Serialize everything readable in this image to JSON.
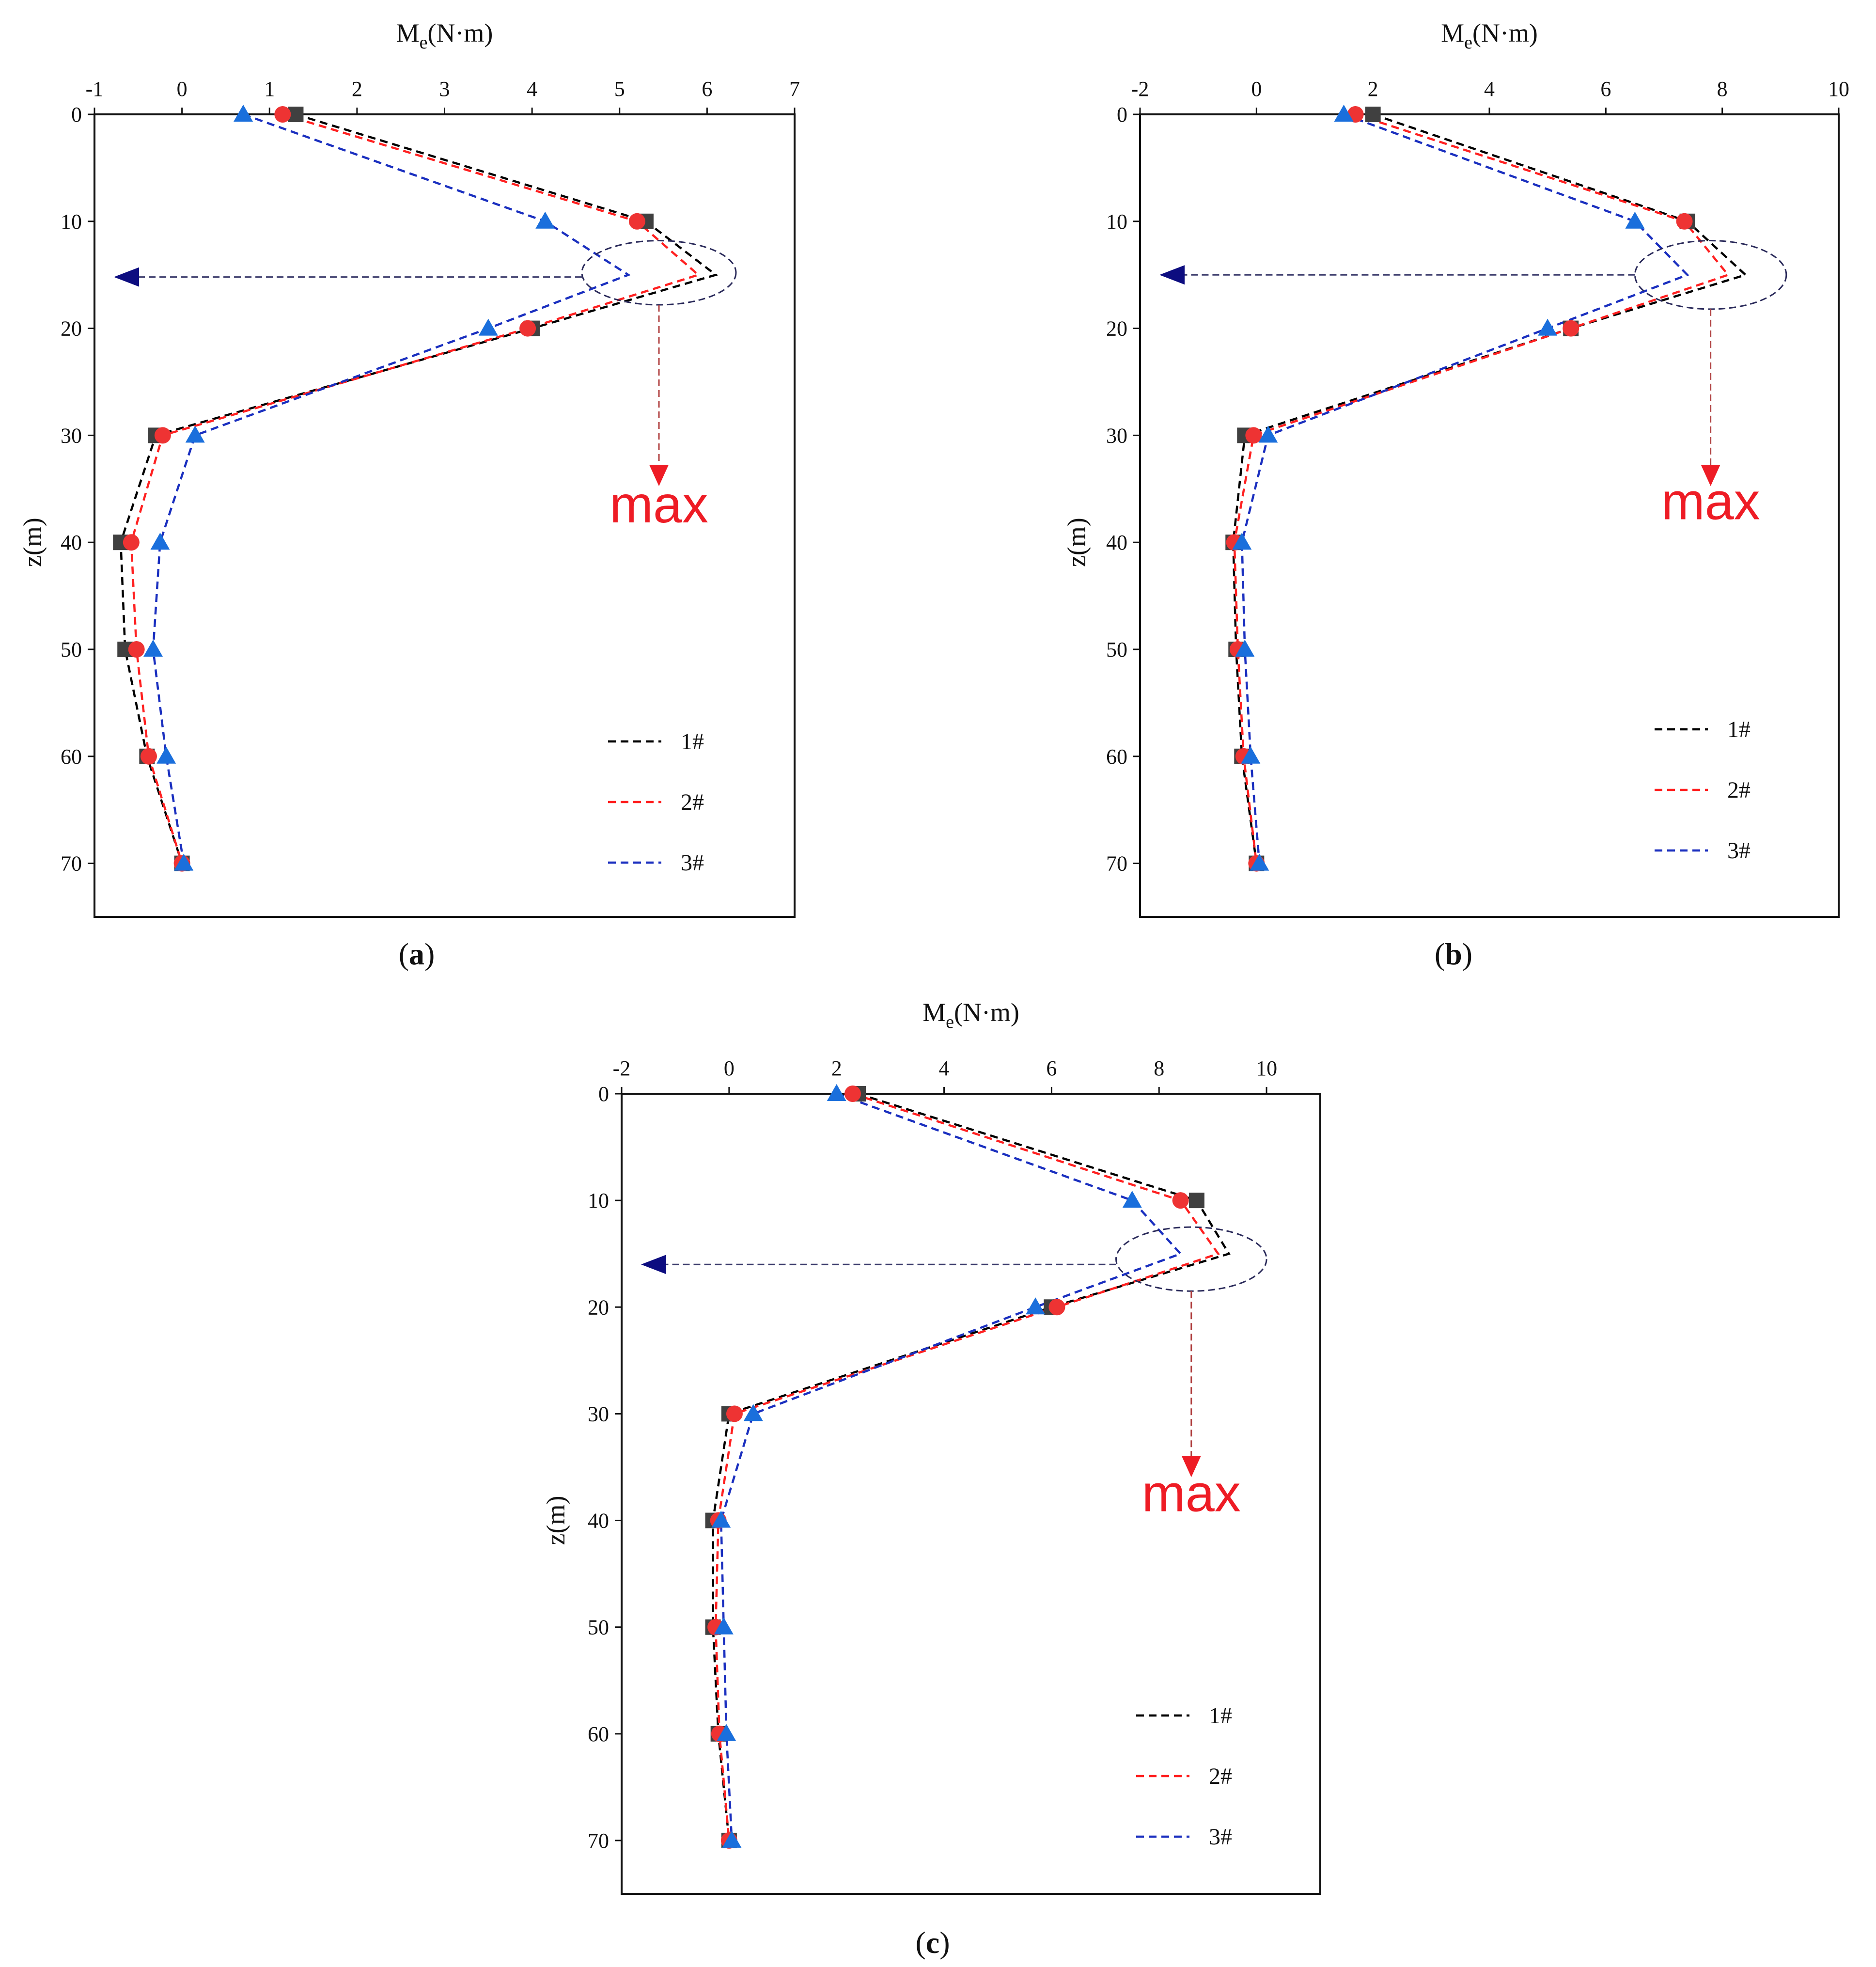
{
  "chart_data": [
    {
      "id": "a",
      "type": "line",
      "panel_label": "a",
      "xlabel": "M",
      "xlabel_sub": "e",
      "xlabel_unit": "(N·m)",
      "ylabel": "z(m)",
      "xlim": [
        -1,
        7
      ],
      "ylim": [
        75,
        0
      ],
      "xticks": [
        -1,
        0,
        1,
        2,
        3,
        4,
        5,
        6,
        7
      ],
      "yticks": [
        0,
        10,
        20,
        30,
        40,
        50,
        60,
        70
      ],
      "series": [
        {
          "name": "1#",
          "color": "#000000",
          "marker": "square",
          "marker_color": "#404040",
          "x": [
            1.3,
            5.3,
            6.1,
            4.0,
            -0.3,
            -0.7,
            -0.65,
            -0.4,
            0.0
          ],
          "y": [
            0,
            10,
            15,
            20,
            30,
            40,
            50,
            60,
            70
          ],
          "marker_idx": [
            0,
            1,
            3,
            4,
            5,
            6,
            7,
            8
          ]
        },
        {
          "name": "2#",
          "color": "#ff2020",
          "marker": "circle",
          "marker_color": "#ee3333",
          "x": [
            1.15,
            5.2,
            5.9,
            3.95,
            -0.22,
            -0.58,
            -0.52,
            -0.38,
            0.0
          ],
          "y": [
            0,
            10,
            15,
            20,
            30,
            40,
            50,
            60,
            70
          ],
          "marker_idx": [
            0,
            1,
            3,
            4,
            5,
            6,
            7,
            8
          ]
        },
        {
          "name": "3#",
          "color": "#1a2fbf",
          "marker": "triangle",
          "marker_color": "#1a6fdc",
          "x": [
            0.7,
            4.15,
            5.1,
            3.5,
            0.15,
            -0.25,
            -0.33,
            -0.18,
            0.02
          ],
          "y": [
            0,
            10,
            15,
            20,
            30,
            40,
            50,
            60,
            70
          ],
          "marker_idx": [
            0,
            1,
            3,
            4,
            5,
            6,
            7,
            8
          ]
        }
      ],
      "annotation": {
        "text": "max",
        "ellipse_center": [
          5.45,
          14.8
        ],
        "ellipse_radii": [
          0.88,
          3.0
        ],
        "arrow_depth": 15.2,
        "max_label_depth": 36.5,
        "arrow_down_to": 34.2
      }
    },
    {
      "id": "b",
      "type": "line",
      "panel_label": "b",
      "xlabel": "M",
      "xlabel_sub": "e",
      "xlabel_unit": "(N·m)",
      "ylabel": "z(m)",
      "xlim": [
        -2,
        10
      ],
      "ylim": [
        75,
        0
      ],
      "xticks": [
        -2,
        0,
        2,
        4,
        6,
        8,
        10
      ],
      "yticks": [
        0,
        10,
        20,
        30,
        40,
        50,
        60,
        70
      ],
      "series": [
        {
          "name": "1#",
          "color": "#000000",
          "marker": "square",
          "marker_color": "#404040",
          "x": [
            2.0,
            7.4,
            8.4,
            5.4,
            -0.2,
            -0.4,
            -0.35,
            -0.25,
            0.0
          ],
          "y": [
            0,
            10,
            15,
            20,
            30,
            40,
            50,
            60,
            70
          ],
          "marker_idx": [
            0,
            1,
            3,
            4,
            5,
            6,
            7,
            8
          ]
        },
        {
          "name": "2#",
          "color": "#ff2020",
          "marker": "circle",
          "marker_color": "#ee3333",
          "x": [
            1.7,
            7.35,
            8.1,
            5.4,
            -0.05,
            -0.38,
            -0.32,
            -0.22,
            0.0
          ],
          "y": [
            0,
            10,
            15,
            20,
            30,
            40,
            50,
            60,
            70
          ],
          "marker_idx": [
            0,
            1,
            3,
            4,
            5,
            6,
            7,
            8
          ]
        },
        {
          "name": "3#",
          "color": "#1a2fbf",
          "marker": "triangle",
          "marker_color": "#1a6fdc",
          "x": [
            1.5,
            6.5,
            7.4,
            5.0,
            0.2,
            -0.25,
            -0.2,
            -0.1,
            0.05
          ],
          "y": [
            0,
            10,
            15,
            20,
            30,
            40,
            50,
            60,
            70
          ],
          "marker_idx": [
            0,
            1,
            3,
            4,
            5,
            6,
            7,
            8
          ]
        }
      ],
      "annotation": {
        "text": "max",
        "ellipse_center": [
          7.8,
          15.0
        ],
        "ellipse_radii": [
          1.3,
          3.2
        ],
        "arrow_depth": 15.0,
        "max_label_depth": 36.2,
        "arrow_down_to": 34.2
      }
    },
    {
      "id": "c",
      "type": "line",
      "panel_label": "c",
      "xlabel": "M",
      "xlabel_sub": "e",
      "xlabel_unit": "(N·m)",
      "ylabel": "z(m)",
      "xlim": [
        -2,
        11
      ],
      "ylim": [
        75,
        0
      ],
      "xticks": [
        -2,
        0,
        2,
        4,
        6,
        8,
        10
      ],
      "yticks": [
        0,
        10,
        20,
        30,
        40,
        50,
        60,
        70
      ],
      "series": [
        {
          "name": "1#",
          "color": "#000000",
          "marker": "square",
          "marker_color": "#404040",
          "x": [
            2.4,
            8.7,
            9.3,
            6.0,
            0.0,
            -0.3,
            -0.3,
            -0.2,
            0.0
          ],
          "y": [
            0,
            10,
            15,
            20,
            30,
            40,
            50,
            60,
            70
          ],
          "marker_idx": [
            0,
            1,
            3,
            4,
            5,
            6,
            7,
            8
          ]
        },
        {
          "name": "2#",
          "color": "#ff2020",
          "marker": "circle",
          "marker_color": "#ee3333",
          "x": [
            2.3,
            8.4,
            9.1,
            6.1,
            0.1,
            -0.2,
            -0.25,
            -0.18,
            0.0
          ],
          "y": [
            0,
            10,
            15,
            20,
            30,
            40,
            50,
            60,
            70
          ],
          "marker_idx": [
            0,
            1,
            3,
            4,
            5,
            6,
            7,
            8
          ]
        },
        {
          "name": "3#",
          "color": "#1a2fbf",
          "marker": "triangle",
          "marker_color": "#1a6fdc",
          "x": [
            2.0,
            7.5,
            8.4,
            5.7,
            0.45,
            -0.15,
            -0.1,
            -0.05,
            0.05
          ],
          "y": [
            0,
            10,
            15,
            20,
            30,
            40,
            50,
            60,
            70
          ],
          "marker_idx": [
            0,
            1,
            3,
            4,
            5,
            6,
            7,
            8
          ]
        }
      ],
      "annotation": {
        "text": "max",
        "ellipse_center": [
          8.6,
          15.5
        ],
        "ellipse_radii": [
          1.4,
          3.0
        ],
        "arrow_depth": 16.0,
        "max_label_depth": 37.5,
        "arrow_down_to": 35.4
      }
    }
  ]
}
